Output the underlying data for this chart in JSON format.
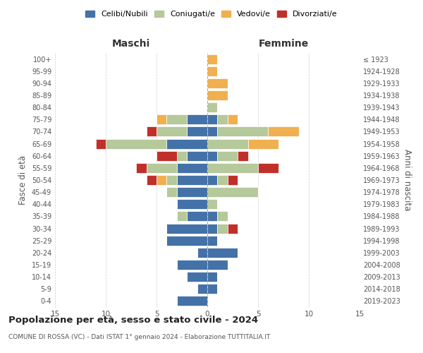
{
  "age_groups": [
    "0-4",
    "5-9",
    "10-14",
    "15-19",
    "20-24",
    "25-29",
    "30-34",
    "35-39",
    "40-44",
    "45-49",
    "50-54",
    "55-59",
    "60-64",
    "65-69",
    "70-74",
    "75-79",
    "80-84",
    "85-89",
    "90-94",
    "95-99",
    "100+"
  ],
  "birth_years": [
    "2019-2023",
    "2014-2018",
    "2009-2013",
    "2004-2008",
    "1999-2003",
    "1994-1998",
    "1989-1993",
    "1984-1988",
    "1979-1983",
    "1974-1978",
    "1969-1973",
    "1964-1968",
    "1959-1963",
    "1954-1958",
    "1949-1953",
    "1944-1948",
    "1939-1943",
    "1934-1938",
    "1929-1933",
    "1924-1928",
    "≤ 1923"
  ],
  "maschi": {
    "celibi": [
      3,
      1,
      2,
      3,
      1,
      4,
      4,
      2,
      3,
      3,
      3,
      3,
      2,
      4,
      2,
      2,
      0,
      0,
      0,
      0,
      0
    ],
    "coniugati": [
      0,
      0,
      0,
      0,
      0,
      0,
      0,
      1,
      0,
      1,
      1,
      3,
      1,
      6,
      3,
      2,
      0,
      0,
      0,
      0,
      0
    ],
    "vedovi": [
      0,
      0,
      0,
      0,
      0,
      0,
      0,
      0,
      0,
      0,
      1,
      0,
      0,
      0,
      0,
      1,
      0,
      0,
      0,
      0,
      0
    ],
    "divorziati": [
      0,
      0,
      0,
      0,
      0,
      0,
      0,
      0,
      0,
      0,
      1,
      1,
      2,
      1,
      1,
      0,
      0,
      0,
      0,
      0,
      0
    ]
  },
  "femmine": {
    "nubili": [
      0,
      1,
      1,
      2,
      3,
      1,
      1,
      1,
      0,
      0,
      1,
      0,
      1,
      0,
      1,
      1,
      0,
      0,
      0,
      0,
      0
    ],
    "coniugate": [
      0,
      0,
      0,
      0,
      0,
      0,
      1,
      1,
      1,
      5,
      1,
      5,
      2,
      4,
      5,
      1,
      1,
      0,
      0,
      0,
      0
    ],
    "vedove": [
      0,
      0,
      0,
      0,
      0,
      0,
      0,
      0,
      0,
      0,
      0,
      0,
      0,
      3,
      3,
      1,
      0,
      2,
      2,
      1,
      1
    ],
    "divorziate": [
      0,
      0,
      0,
      0,
      0,
      0,
      1,
      0,
      0,
      0,
      1,
      2,
      1,
      0,
      0,
      0,
      0,
      0,
      0,
      0,
      0
    ]
  },
  "colors": {
    "celibi_nubili": "#4472a8",
    "coniugati": "#b5c99a",
    "vedovi": "#f0b050",
    "divorziati": "#c0302a"
  },
  "xlim": 15,
  "title_main": "Popolazione per età, sesso e stato civile - 2024",
  "title_sub": "COMUNE DI ROSSA (VC) - Dati ISTAT 1° gennaio 2024 - Elaborazione TUTTITALIA.IT",
  "ylabel_left": "Fasce di età",
  "ylabel_right": "Anni di nascita",
  "legend_labels": [
    "Celibi/Nubili",
    "Coniugati/e",
    "Vedovi/e",
    "Divorziati/e"
  ],
  "maschi_label": "Maschi",
  "femmine_label": "Femmine",
  "background_color": "#ffffff",
  "grid_color": "#cccccc"
}
